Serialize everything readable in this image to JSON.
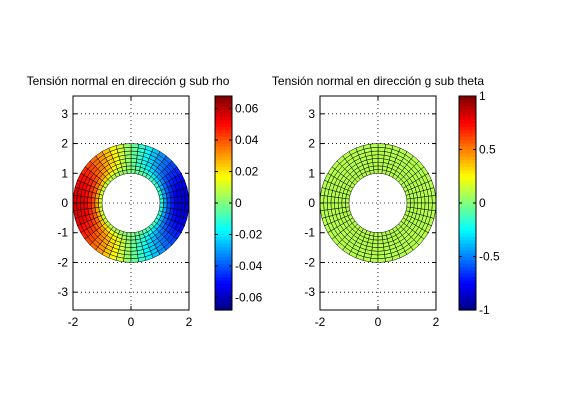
{
  "chart_data": [
    {
      "type": "heatmap",
      "title": "Tensión normal en dirección g sub rho",
      "xlim": [
        -2,
        2
      ],
      "ylim": [
        -3.6,
        3.6
      ],
      "xticks": [
        -2,
        0,
        2
      ],
      "yticks": [
        -3,
        -2,
        -1,
        0,
        1,
        2,
        3
      ],
      "grid": true,
      "inner_radius": 1,
      "outer_radius": 2,
      "mesh": {
        "radial_divisions": 8,
        "angular_divisions": 48
      },
      "field": "c * cos(theta) * ((r/rmax) - 1/(r/rmin)) / (r/rmax)",
      "colorbar": {
        "colormap": "jet",
        "clim": [
          -0.068,
          0.068
        ],
        "ticks": [
          -0.06,
          -0.04,
          -0.02,
          0,
          0.02,
          0.04,
          0.06
        ]
      }
    },
    {
      "type": "heatmap",
      "title": "Tensión normal en dirección g sub theta",
      "xlim": [
        -2,
        2
      ],
      "ylim": [
        -3.6,
        3.6
      ],
      "xticks": [
        -2,
        0,
        2
      ],
      "yticks": [
        -3,
        -2,
        -1,
        0,
        1,
        2,
        3
      ],
      "grid": true,
      "inner_radius": 1,
      "outer_radius": 2,
      "mesh": {
        "radial_divisions": 8,
        "angular_divisions": 48
      },
      "uniform_value": 0.1,
      "colorbar": {
        "colormap": "jet",
        "clim": [
          -1,
          1
        ],
        "ticks": [
          -1,
          -0.5,
          0,
          0.5,
          1
        ]
      }
    }
  ]
}
